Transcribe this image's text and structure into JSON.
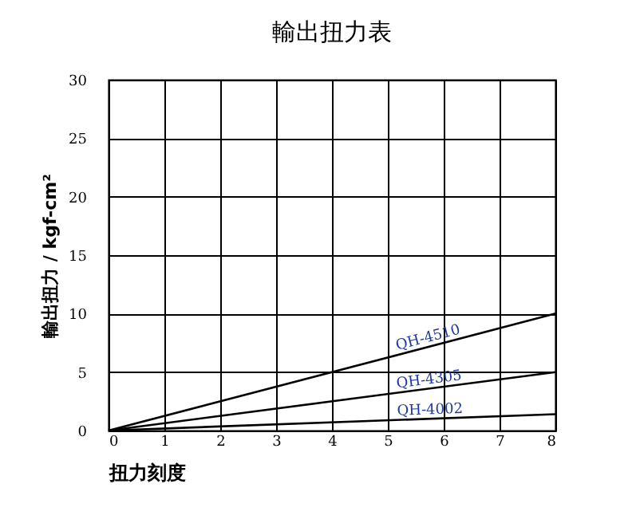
{
  "chart_data": {
    "type": "line",
    "title": "輸出扭力表",
    "xlabel": "扭力刻度",
    "ylabel": "輸出扭力 / kgf-cm²",
    "xlim": [
      0,
      8
    ],
    "xticks": [
      0,
      1,
      2,
      3,
      4,
      5,
      6,
      7,
      8
    ],
    "ylim": [
      0,
      30
    ],
    "yticks": [
      0,
      5,
      10,
      15,
      20,
      25,
      30
    ],
    "grid": true,
    "legend": false,
    "marker": "none",
    "line_style": "solid",
    "x": [
      0,
      8
    ],
    "series": [
      {
        "name": "QH-4510",
        "color": "#000000",
        "values": [
          0,
          10
        ]
      },
      {
        "name": "QH-4305",
        "color": "#000000",
        "values": [
          0,
          5
        ]
      },
      {
        "name": "QH-4002",
        "color": "#000000",
        "values": [
          0,
          1.4
        ]
      }
    ]
  }
}
